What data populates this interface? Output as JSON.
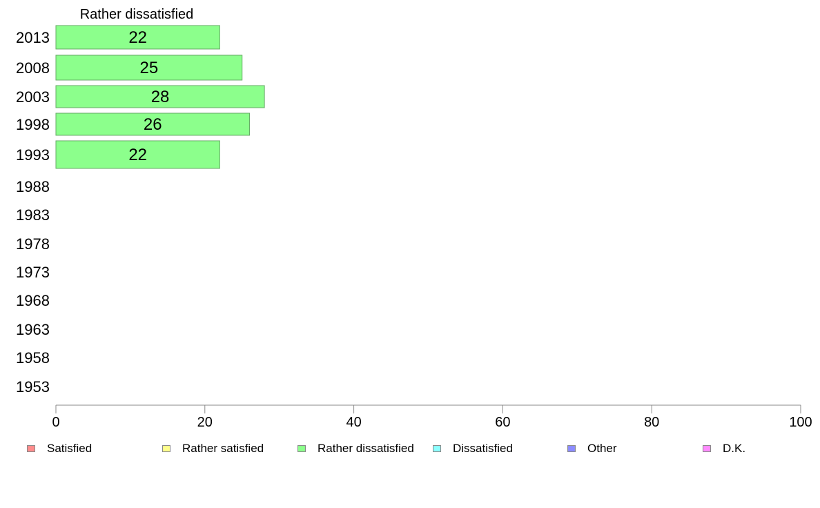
{
  "chart_data": {
    "type": "bar",
    "orientation": "horizontal",
    "title": "Rather dissatisfied",
    "categories": [
      "2013",
      "2008",
      "2003",
      "1998",
      "1993",
      "1988",
      "1983",
      "1978",
      "1973",
      "1968",
      "1963",
      "1958",
      "1953"
    ],
    "series": [
      {
        "name": "Rather dissatisfied",
        "values": [
          22,
          25,
          28,
          26,
          22,
          null,
          null,
          null,
          null,
          null,
          null,
          null,
          null
        ]
      }
    ],
    "data_labels": [
      "22",
      "25",
      "28",
      "26",
      "22"
    ],
    "xlim": [
      0,
      100
    ],
    "xticks": [
      "0",
      "20",
      "40",
      "60",
      "80",
      "100"
    ],
    "grid": false,
    "bar_color": "#8cff8c",
    "legend_placement": "bottom",
    "legend": [
      {
        "label": "Satisfied",
        "color": "#ff8c8c"
      },
      {
        "label": "Rather satisfied",
        "color": "#ffff8c"
      },
      {
        "label": "Rather dissatisfied",
        "color": "#8cff8c"
      },
      {
        "label": "Dissatisfied",
        "color": "#8cffff"
      },
      {
        "label": "Other",
        "color": "#8c8cff"
      },
      {
        "label": "D.K.",
        "color": "#ff8cff"
      }
    ]
  }
}
